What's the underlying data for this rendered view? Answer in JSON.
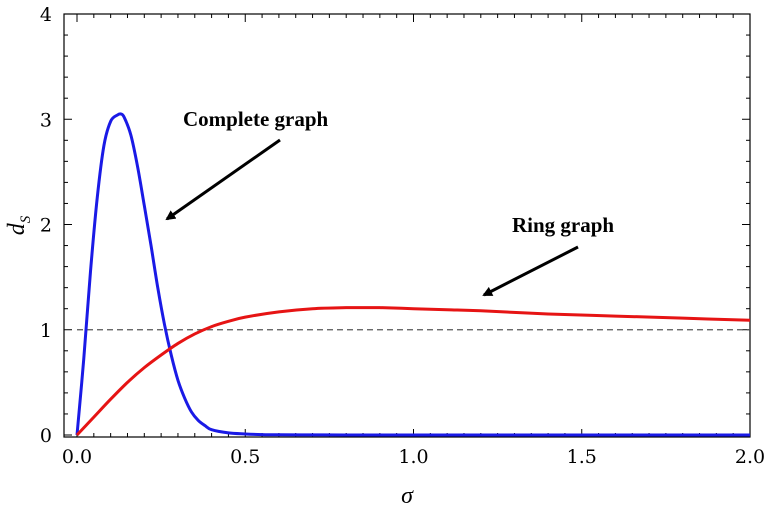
{
  "chart_data": {
    "type": "line",
    "title": "",
    "xlabel": "σ",
    "ylabel": {
      "main": "d",
      "sub": "S"
    },
    "xlim": [
      0,
      2.0
    ],
    "ylim": [
      0,
      4
    ],
    "x_ticks": [
      "0.0",
      "0.5",
      "1.0",
      "1.5",
      "2.0"
    ],
    "x_tick_values": [
      0,
      0.5,
      1.0,
      1.5,
      2.0
    ],
    "y_ticks": [
      "0",
      "1",
      "2",
      "3",
      "4"
    ],
    "y_tick_values": [
      0,
      1,
      2,
      3,
      4
    ],
    "grid": false,
    "reference_line": {
      "y": 1,
      "style": "dashed",
      "color": "#555555"
    },
    "series": [
      {
        "name": "Complete graph",
        "color": "#1a1ae6",
        "x": [
          0,
          0.02,
          0.04,
          0.06,
          0.08,
          0.1,
          0.12,
          0.13,
          0.14,
          0.16,
          0.18,
          0.2,
          0.22,
          0.24,
          0.26,
          0.28,
          0.3,
          0.32,
          0.34,
          0.36,
          0.38,
          0.4,
          0.45,
          0.5,
          0.55,
          0.6,
          0.7,
          0.8,
          1.0,
          1.5,
          2.0
        ],
        "y": [
          0,
          0.72,
          1.55,
          2.25,
          2.75,
          2.98,
          3.04,
          3.05,
          3.02,
          2.85,
          2.55,
          2.18,
          1.8,
          1.4,
          1.05,
          0.76,
          0.52,
          0.35,
          0.22,
          0.14,
          0.09,
          0.05,
          0.02,
          0.01,
          0.004,
          0.002,
          0.001,
          0,
          0,
          0,
          0
        ]
      },
      {
        "name": "Ring graph",
        "color": "#e61414",
        "x": [
          0,
          0.05,
          0.1,
          0.15,
          0.2,
          0.25,
          0.3,
          0.35,
          0.4,
          0.45,
          0.5,
          0.6,
          0.7,
          0.8,
          0.85,
          0.9,
          1.0,
          1.1,
          1.2,
          1.4,
          1.6,
          1.8,
          2.0
        ],
        "y": [
          0,
          0.17,
          0.34,
          0.5,
          0.64,
          0.76,
          0.87,
          0.96,
          1.03,
          1.08,
          1.12,
          1.17,
          1.2,
          1.21,
          1.21,
          1.21,
          1.2,
          1.19,
          1.18,
          1.15,
          1.13,
          1.11,
          1.09
        ]
      }
    ],
    "annotations": [
      {
        "text": "Complete graph",
        "target_series": "Complete graph"
      },
      {
        "text": "Ring graph",
        "target_series": "Ring graph"
      }
    ]
  }
}
